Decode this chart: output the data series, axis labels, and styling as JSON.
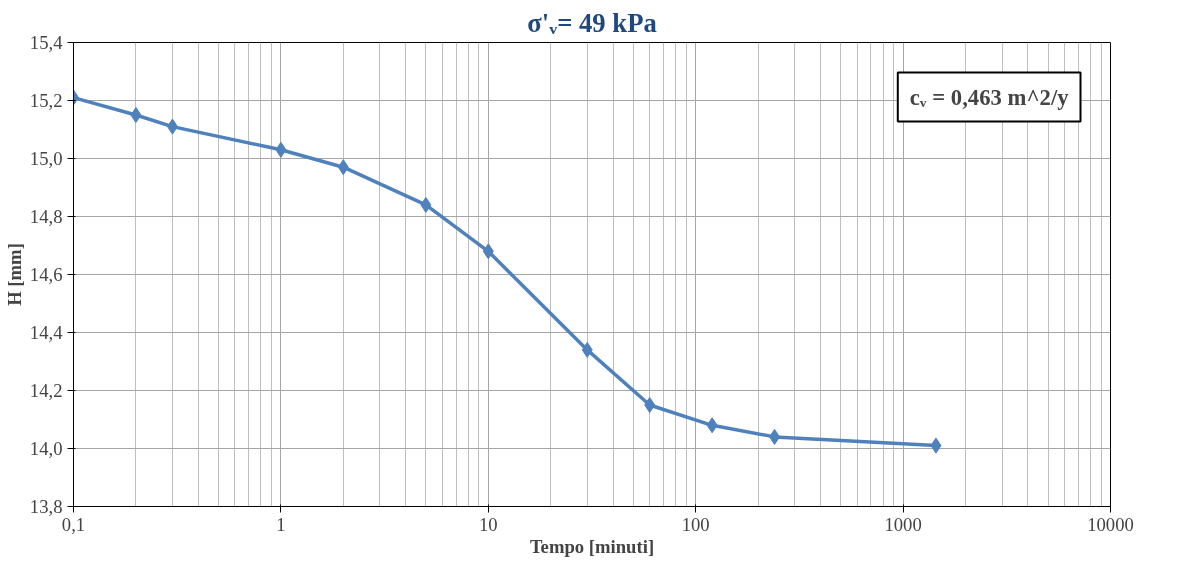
{
  "chart_data": {
    "type": "line",
    "title": "σ'ᵥ= 49 kPa",
    "xlabel": "Tempo [minuti]",
    "ylabel": "H [mm]",
    "annotations": [
      "cᵥ = 0,463 m^2/y"
    ],
    "x": [
      0.1,
      0.2,
      0.3,
      1,
      2,
      5,
      10,
      30,
      60,
      120,
      240,
      1440
    ],
    "series": [
      {
        "color": "#4f81bd",
        "values": [
          15.21,
          15.15,
          15.11,
          15.03,
          14.97,
          14.84,
          14.68,
          14.34,
          14.15,
          14.08,
          14.04,
          14.01
        ]
      }
    ],
    "log": "x",
    "xlim": [
      0.1,
      10000
    ],
    "xticks": [
      {
        "value": 0.1,
        "label": "0,1"
      },
      1,
      10,
      100,
      1000,
      10000
    ],
    "ylim": [
      13.8,
      15.4
    ],
    "yticks": [
      {
        "value": 13.8,
        "label": "13,8"
      },
      {
        "value": 14.0,
        "label": "14,0"
      },
      {
        "value": 14.2,
        "label": "14,2"
      },
      {
        "value": 14.4,
        "label": "14,4"
      },
      {
        "value": 14.6,
        "label": "14,6"
      },
      {
        "value": 14.8,
        "label": "14,8"
      },
      {
        "value": 15.0,
        "label": "15,0"
      },
      {
        "value": 15.2,
        "label": "15,2"
      },
      {
        "value": 15.4,
        "label": "15,4"
      }
    ],
    "grid": true,
    "marker": "diamond",
    "line_style": "solid"
  }
}
